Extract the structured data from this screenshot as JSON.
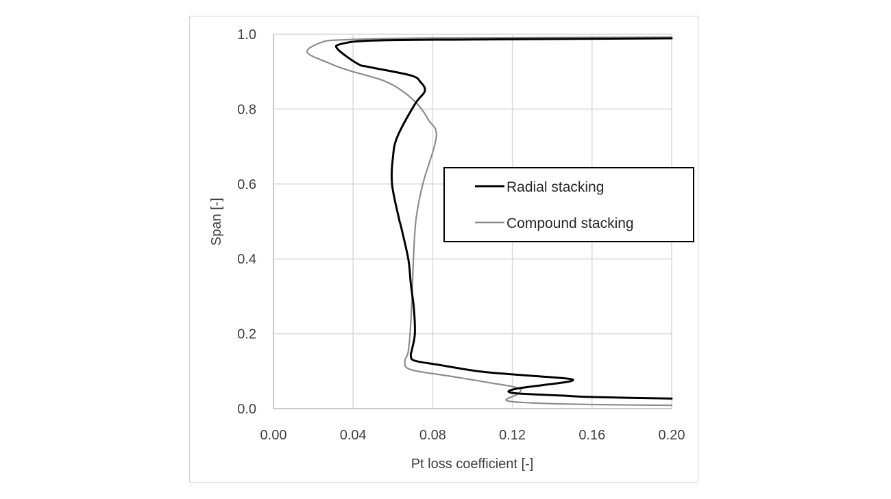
{
  "chart_data": {
    "type": "line",
    "title": "",
    "xlabel": "Pt loss coefficient [-]",
    "ylabel": "Span [-]",
    "xlim": [
      0.0,
      0.2
    ],
    "ylim": [
      0.0,
      1.0
    ],
    "x_ticks": [
      "0.00",
      "0.04",
      "0.08",
      "0.12",
      "0.16",
      "0.20"
    ],
    "y_ticks": [
      "0.0",
      "0.2",
      "0.4",
      "0.6",
      "0.8",
      "1.0"
    ],
    "grid": true,
    "legend_position": "inside-right-middle",
    "series": [
      {
        "name": "Radial stacking",
        "color": "#000000",
        "points": [
          [
            0.2,
            0.027
          ],
          [
            0.16,
            0.031
          ],
          [
            0.145,
            0.035
          ],
          [
            0.124,
            0.04
          ],
          [
            0.118,
            0.046
          ],
          [
            0.124,
            0.055
          ],
          [
            0.14,
            0.066
          ],
          [
            0.149,
            0.073
          ],
          [
            0.148,
            0.08
          ],
          [
            0.124,
            0.09
          ],
          [
            0.104,
            0.099
          ],
          [
            0.083,
            0.117
          ],
          [
            0.071,
            0.128
          ],
          [
            0.069,
            0.141
          ],
          [
            0.0696,
            0.159
          ],
          [
            0.071,
            0.2
          ],
          [
            0.0705,
            0.269
          ],
          [
            0.069,
            0.333
          ],
          [
            0.0677,
            0.4
          ],
          [
            0.064,
            0.488
          ],
          [
            0.0631,
            0.506
          ],
          [
            0.0596,
            0.598
          ],
          [
            0.06,
            0.671
          ],
          [
            0.0622,
            0.726
          ],
          [
            0.071,
            0.813
          ],
          [
            0.076,
            0.848
          ],
          [
            0.0739,
            0.872
          ],
          [
            0.069,
            0.89
          ],
          [
            0.0485,
            0.912
          ],
          [
            0.0423,
            0.921
          ],
          [
            0.0323,
            0.96
          ],
          [
            0.034,
            0.974
          ],
          [
            0.05,
            0.983
          ],
          [
            0.1,
            0.986
          ],
          [
            0.2,
            0.989
          ]
        ]
      },
      {
        "name": "Compound stacking",
        "color": "#8c8c8c",
        "points": [
          [
            0.2,
            0.009
          ],
          [
            0.16,
            0.011
          ],
          [
            0.131,
            0.015
          ],
          [
            0.117,
            0.022
          ],
          [
            0.123,
            0.04
          ],
          [
            0.123,
            0.055
          ],
          [
            0.11,
            0.068
          ],
          [
            0.0897,
            0.086
          ],
          [
            0.069,
            0.104
          ],
          [
            0.066,
            0.126
          ],
          [
            0.0676,
            0.15
          ],
          [
            0.0686,
            0.2
          ],
          [
            0.0696,
            0.3
          ],
          [
            0.0703,
            0.4
          ],
          [
            0.0716,
            0.506
          ],
          [
            0.075,
            0.6
          ],
          [
            0.0818,
            0.726
          ],
          [
            0.078,
            0.77
          ],
          [
            0.0732,
            0.808
          ],
          [
            0.0656,
            0.845
          ],
          [
            0.0553,
            0.876
          ],
          [
            0.038,
            0.903
          ],
          [
            0.0278,
            0.923
          ],
          [
            0.0169,
            0.952
          ],
          [
            0.024,
            0.978
          ],
          [
            0.035,
            0.985
          ],
          [
            0.08,
            0.99
          ],
          [
            0.2,
            0.992
          ]
        ]
      }
    ]
  },
  "legend": {
    "items": [
      {
        "label": "Radial stacking",
        "color": "#000000"
      },
      {
        "label": "Compound stacking",
        "color": "#8c8c8c"
      }
    ]
  }
}
